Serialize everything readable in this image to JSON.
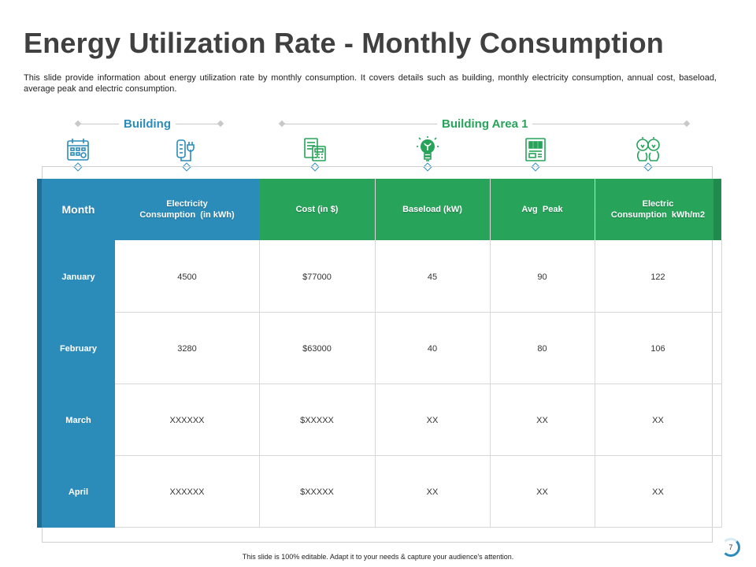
{
  "title": "Energy Utilization Rate - Monthly Consumption",
  "description": "This slide provide information about energy utilization rate by monthly consumption. It covers details such as building, monthly electricity consumption, annual cost, baseload, average peak and electric consumption.",
  "categories": {
    "building": "Building",
    "building_area": "Building Area 1"
  },
  "icons": [
    "calendar-icon",
    "plug-icon",
    "invoice-icon",
    "lightbulb-icon",
    "meter-panel-icon",
    "bulbs-icon"
  ],
  "colors": {
    "blue": "#2b8cba",
    "green": "#27a35a",
    "title": "#404040"
  },
  "table": {
    "headers": {
      "month": "Month",
      "electricity_1": "Electricity",
      "electricity_2": "Consumption  (in kWh)",
      "cost": "Cost (in $)",
      "baseload": "Baseload (kW)",
      "avg_peak": "Avg  Peak",
      "electric_1": "Electric",
      "electric_2": "Consumption  kWh/m2"
    },
    "rows": [
      {
        "month": "January",
        "electricity": "4500",
        "cost": "$77000",
        "baseload": "45",
        "avg_peak": "90",
        "electric": "122"
      },
      {
        "month": "February",
        "electricity": "3280",
        "cost": "$63000",
        "baseload": "40",
        "avg_peak": "80",
        "electric": "106"
      },
      {
        "month": "March",
        "electricity": "XXXXXX",
        "cost": "$XXXXX",
        "baseload": "XX",
        "avg_peak": "XX",
        "electric": "XX"
      },
      {
        "month": "April",
        "electricity": "XXXXXX",
        "cost": "$XXXXX",
        "baseload": "XX",
        "avg_peak": "XX",
        "electric": "XX"
      }
    ]
  },
  "footer": "This slide is 100% editable. Adapt it to your needs & capture your audience's attention.",
  "page_number": "7"
}
